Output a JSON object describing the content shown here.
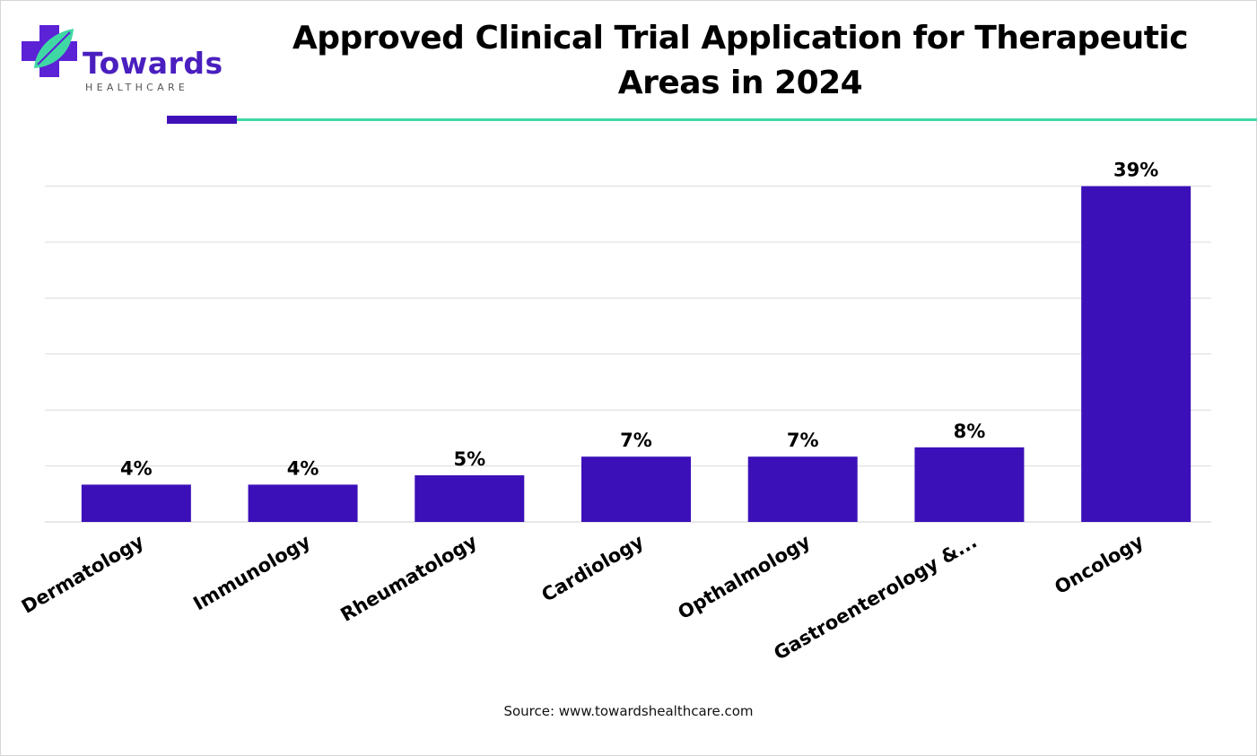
{
  "brand": {
    "name": "Towards",
    "sub": "HEALTHCARE"
  },
  "colors": {
    "bar": "#3c10b8",
    "accent_green": "#3fd8a4",
    "grid": "#dcdcdc"
  },
  "chart_data": {
    "type": "bar",
    "title": "Approved Clinical Trial Application for Therapeutic Areas in 2024",
    "categories": [
      "Dermatology",
      "Immunology",
      "Rheumatology",
      "Cardiology",
      "Opthalmology",
      "Gastroenterology &...",
      "Oncology"
    ],
    "values": [
      4,
      4,
      5,
      7,
      7,
      8,
      39
    ],
    "data_labels": [
      "4%",
      "4%",
      "5%",
      "7%",
      "7%",
      "8%",
      "39%"
    ],
    "unit": "%",
    "ylim": [
      0,
      36
    ],
    "grid": true,
    "legend": "none"
  },
  "source": "Source: www.towardshealthcare.com"
}
